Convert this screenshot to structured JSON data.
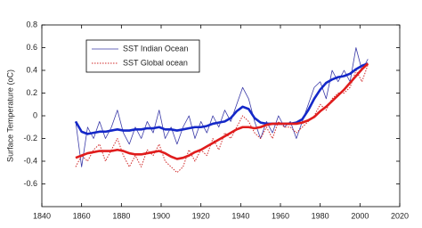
{
  "chart_data": {
    "type": "line",
    "y_label": "Surface Temperature (oC)",
    "x": [
      1857,
      1860,
      1863,
      1866,
      1869,
      1872,
      1875,
      1878,
      1881,
      1884,
      1887,
      1890,
      1893,
      1896,
      1899,
      1902,
      1905,
      1908,
      1911,
      1914,
      1917,
      1920,
      1923,
      1926,
      1929,
      1932,
      1935,
      1938,
      1941,
      1944,
      1947,
      1950,
      1953,
      1956,
      1959,
      1962,
      1965,
      1968,
      1971,
      1974,
      1977,
      1980,
      1983,
      1986,
      1989,
      1992,
      1995,
      1998,
      2001,
      2004
    ],
    "xlim": [
      1840,
      2020
    ],
    "xticks": [
      1840,
      1860,
      1880,
      1900,
      1920,
      1940,
      1960,
      1980,
      2000,
      2020
    ],
    "ylim": [
      -0.8,
      0.8
    ],
    "yticks": [
      -0.6,
      -0.4,
      -0.2,
      0,
      0.2,
      0.4,
      0.6,
      0.8
    ],
    "legend": "upper left",
    "series": [
      {
        "name": "SST Indian Ocean",
        "color": "#3a3aa8",
        "width": 0.8,
        "style": "solid",
        "values": [
          -0.05,
          -0.45,
          -0.1,
          -0.2,
          -0.05,
          -0.2,
          -0.1,
          0.05,
          -0.15,
          -0.25,
          -0.1,
          -0.2,
          -0.05,
          -0.15,
          0.05,
          -0.2,
          -0.1,
          -0.25,
          -0.1,
          0.0,
          -0.2,
          -0.05,
          -0.15,
          0.0,
          -0.1,
          0.05,
          -0.05,
          0.1,
          0.25,
          0.15,
          -0.05,
          -0.2,
          -0.05,
          -0.15,
          0.0,
          -0.1,
          -0.05,
          -0.2,
          -0.05,
          0.1,
          0.25,
          0.3,
          0.15,
          0.4,
          0.3,
          0.4,
          0.3,
          0.6,
          0.4,
          0.5
        ]
      },
      {
        "name": "SST Global ocean",
        "color": "#d02828",
        "width": 1,
        "style": "dotted",
        "values": [
          -0.45,
          -0.35,
          -0.4,
          -0.3,
          -0.25,
          -0.4,
          -0.3,
          -0.2,
          -0.35,
          -0.45,
          -0.35,
          -0.45,
          -0.3,
          -0.35,
          -0.25,
          -0.4,
          -0.45,
          -0.5,
          -0.45,
          -0.3,
          -0.4,
          -0.3,
          -0.35,
          -0.2,
          -0.3,
          -0.15,
          -0.2,
          -0.1,
          0.0,
          -0.05,
          -0.15,
          -0.2,
          -0.1,
          -0.2,
          -0.05,
          -0.1,
          -0.1,
          -0.15,
          -0.1,
          -0.05,
          0.0,
          0.1,
          0.05,
          0.15,
          0.2,
          0.2,
          0.25,
          0.4,
          0.3,
          0.45
        ]
      },
      {
        "color": "#1428c8",
        "width": 2.6,
        "style": "solid",
        "values": [
          -0.05,
          -0.14,
          -0.16,
          -0.15,
          -0.14,
          -0.14,
          -0.13,
          -0.12,
          -0.13,
          -0.13,
          -0.12,
          -0.12,
          -0.11,
          -0.11,
          -0.1,
          -0.12,
          -0.12,
          -0.13,
          -0.12,
          -0.11,
          -0.1,
          -0.1,
          -0.09,
          -0.07,
          -0.06,
          -0.05,
          -0.02,
          0.04,
          0.08,
          0.06,
          -0.02,
          -0.06,
          -0.07,
          -0.07,
          -0.07,
          -0.07,
          -0.07,
          -0.06,
          -0.03,
          0.05,
          0.15,
          0.23,
          0.29,
          0.32,
          0.34,
          0.35,
          0.37,
          0.41,
          0.44,
          0.46
        ]
      },
      {
        "color": "#e01c1c",
        "width": 2.6,
        "style": "solid",
        "values": [
          -0.37,
          -0.35,
          -0.33,
          -0.32,
          -0.31,
          -0.31,
          -0.31,
          -0.3,
          -0.31,
          -0.33,
          -0.34,
          -0.34,
          -0.33,
          -0.32,
          -0.31,
          -0.33,
          -0.36,
          -0.38,
          -0.37,
          -0.35,
          -0.32,
          -0.3,
          -0.27,
          -0.24,
          -0.21,
          -0.18,
          -0.15,
          -0.12,
          -0.1,
          -0.1,
          -0.11,
          -0.1,
          -0.08,
          -0.07,
          -0.07,
          -0.07,
          -0.07,
          -0.07,
          -0.06,
          -0.04,
          -0.01,
          0.04,
          0.08,
          0.13,
          0.18,
          0.23,
          0.29,
          0.35,
          0.41,
          0.46
        ]
      }
    ]
  }
}
